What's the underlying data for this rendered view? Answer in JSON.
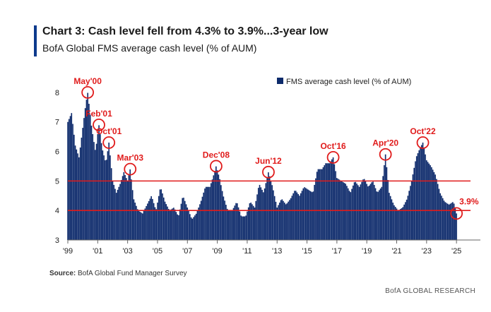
{
  "header": {
    "title": "Chart 3: Cash level fell from 4.3% to 3.9%...3-year low",
    "subtitle": "BofA Global FMS average cash level (% of AUM)"
  },
  "footer": {
    "source_label": "Source:",
    "source_text": "BofA Global Fund Manager Survey",
    "brand": "BofA GLOBAL RESEARCH"
  },
  "colors": {
    "bar": "#0d2a6b",
    "accent": "#e01b1b",
    "title_bar": "#0d3a8c"
  },
  "chart_data": {
    "type": "bar",
    "legend": "FMS average cash level (% of AUM)",
    "legend_position": "top-right",
    "ylim": [
      3,
      8.5
    ],
    "yticks": [
      3,
      4,
      5,
      6,
      7,
      8
    ],
    "xticks": [
      "'99",
      "'01",
      "'03",
      "'05",
      "'07",
      "'09",
      "'11",
      "'13",
      "'15",
      "'17",
      "'19",
      "'21",
      "'23",
      "'25"
    ],
    "reference_lines": [
      5.0,
      4.0
    ],
    "annotations": [
      {
        "label": "May'00",
        "x": 2000.33,
        "y": 8.0
      },
      {
        "label": "Feb'01",
        "x": 2001.08,
        "y": 6.9
      },
      {
        "label": "Oct'01",
        "x": 2001.75,
        "y": 6.3
      },
      {
        "label": "Mar'03",
        "x": 2003.17,
        "y": 5.4
      },
      {
        "label": "Dec'08",
        "x": 2008.92,
        "y": 5.5
      },
      {
        "label": "Jun'12",
        "x": 2012.42,
        "y": 5.3
      },
      {
        "label": "Oct'16",
        "x": 2016.75,
        "y": 5.8
      },
      {
        "label": "Apr'20",
        "x": 2020.25,
        "y": 5.9
      },
      {
        "label": "Oct'22",
        "x": 2022.75,
        "y": 6.3
      },
      {
        "label": "3.9%",
        "x": 2025.0,
        "y": 3.9
      }
    ],
    "points": [
      [
        1999.0,
        7.0
      ],
      [
        1999.25,
        7.3
      ],
      [
        1999.5,
        6.2
      ],
      [
        1999.75,
        5.8
      ],
      [
        2000.0,
        6.8
      ],
      [
        2000.2,
        7.6
      ],
      [
        2000.33,
        8.0
      ],
      [
        2000.6,
        6.8
      ],
      [
        2000.85,
        6.0
      ],
      [
        2001.08,
        6.9
      ],
      [
        2001.3,
        6.1
      ],
      [
        2001.55,
        5.6
      ],
      [
        2001.75,
        6.3
      ],
      [
        2002.0,
        5.0
      ],
      [
        2002.25,
        4.6
      ],
      [
        2002.5,
        4.9
      ],
      [
        2002.75,
        5.3
      ],
      [
        2003.0,
        5.0
      ],
      [
        2003.17,
        5.4
      ],
      [
        2003.4,
        4.4
      ],
      [
        2003.7,
        4.0
      ],
      [
        2004.0,
        3.9
      ],
      [
        2004.3,
        4.2
      ],
      [
        2004.6,
        4.5
      ],
      [
        2004.9,
        4.0
      ],
      [
        2005.2,
        4.8
      ],
      [
        2005.5,
        4.3
      ],
      [
        2005.8,
        4.0
      ],
      [
        2006.1,
        4.1
      ],
      [
        2006.4,
        3.8
      ],
      [
        2006.7,
        4.5
      ],
      [
        2007.0,
        4.1
      ],
      [
        2007.3,
        3.7
      ],
      [
        2007.6,
        3.9
      ],
      [
        2007.9,
        4.3
      ],
      [
        2008.2,
        4.8
      ],
      [
        2008.5,
        4.8
      ],
      [
        2008.7,
        5.1
      ],
      [
        2008.92,
        5.5
      ],
      [
        2009.15,
        5.1
      ],
      [
        2009.4,
        4.5
      ],
      [
        2009.7,
        4.0
      ],
      [
        2010.0,
        4.0
      ],
      [
        2010.3,
        4.3
      ],
      [
        2010.6,
        3.8
      ],
      [
        2010.9,
        3.8
      ],
      [
        2011.2,
        4.3
      ],
      [
        2011.5,
        4.1
      ],
      [
        2011.8,
        4.9
      ],
      [
        2012.1,
        4.6
      ],
      [
        2012.42,
        5.3
      ],
      [
        2012.7,
        4.8
      ],
      [
        2013.0,
        4.1
      ],
      [
        2013.3,
        4.4
      ],
      [
        2013.6,
        4.2
      ],
      [
        2013.9,
        4.4
      ],
      [
        2014.2,
        4.7
      ],
      [
        2014.5,
        4.5
      ],
      [
        2014.8,
        4.8
      ],
      [
        2015.1,
        4.7
      ],
      [
        2015.4,
        4.6
      ],
      [
        2015.7,
        5.4
      ],
      [
        2016.0,
        5.4
      ],
      [
        2016.25,
        5.6
      ],
      [
        2016.5,
        5.6
      ],
      [
        2016.75,
        5.8
      ],
      [
        2017.0,
        5.1
      ],
      [
        2017.3,
        5.0
      ],
      [
        2017.6,
        4.9
      ],
      [
        2017.9,
        4.6
      ],
      [
        2018.2,
        5.0
      ],
      [
        2018.5,
        4.8
      ],
      [
        2018.8,
        5.1
      ],
      [
        2019.1,
        4.8
      ],
      [
        2019.4,
        5.0
      ],
      [
        2019.7,
        4.6
      ],
      [
        2020.0,
        4.8
      ],
      [
        2020.25,
        5.9
      ],
      [
        2020.5,
        4.6
      ],
      [
        2020.8,
        4.2
      ],
      [
        2021.1,
        4.0
      ],
      [
        2021.4,
        4.1
      ],
      [
        2021.7,
        4.4
      ],
      [
        2022.0,
        5.0
      ],
      [
        2022.3,
        5.8
      ],
      [
        2022.55,
        6.1
      ],
      [
        2022.75,
        6.3
      ],
      [
        2023.0,
        5.7
      ],
      [
        2023.3,
        5.5
      ],
      [
        2023.6,
        5.2
      ],
      [
        2023.9,
        4.6
      ],
      [
        2024.2,
        4.3
      ],
      [
        2024.5,
        4.2
      ],
      [
        2024.8,
        4.3
      ],
      [
        2025.0,
        3.9
      ]
    ]
  }
}
